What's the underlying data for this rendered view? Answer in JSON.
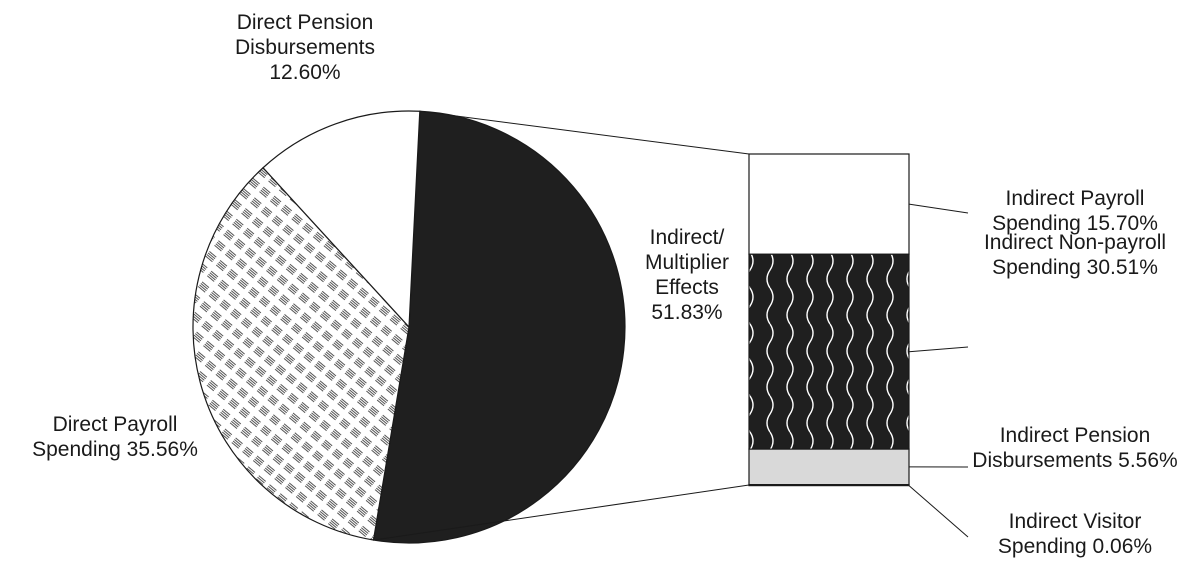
{
  "chart_data": {
    "type": "bar-of-pie",
    "pie": {
      "slices": [
        {
          "label": [
            "Direct Pension",
            "Disbursements",
            "12.60%"
          ],
          "value": 12.6,
          "fill": "white"
        },
        {
          "label": [
            "Direct Payroll",
            "Spending 35.56%"
          ],
          "value": 35.56,
          "fill": "crosshatch"
        },
        {
          "label": [
            "Indirect/",
            "Multiplier",
            "Effects",
            "51.83%"
          ],
          "value": 51.83,
          "fill": "black",
          "exploded_to_bar": true
        }
      ]
    },
    "bar": {
      "segments": [
        {
          "label": [
            "Indirect Payroll",
            "Spending 15.70%"
          ],
          "value": 15.7,
          "fill": "white"
        },
        {
          "label": [
            "Indirect Non-payroll",
            "Spending 30.51%"
          ],
          "value": 30.51,
          "fill": "wavy-black"
        },
        {
          "label": [
            "Indirect Pension",
            "Disbursements 5.56%"
          ],
          "value": 5.56,
          "fill": "light-gray"
        },
        {
          "label": [
            "Indirect Visitor",
            "Spending 0.06%"
          ],
          "value": 0.06,
          "fill": "light-gray"
        }
      ]
    },
    "colors": {
      "black": "#1f1f1f",
      "light_gray": "#d9d9d9",
      "white": "#ffffff",
      "stroke": "#1a1a1a"
    }
  }
}
